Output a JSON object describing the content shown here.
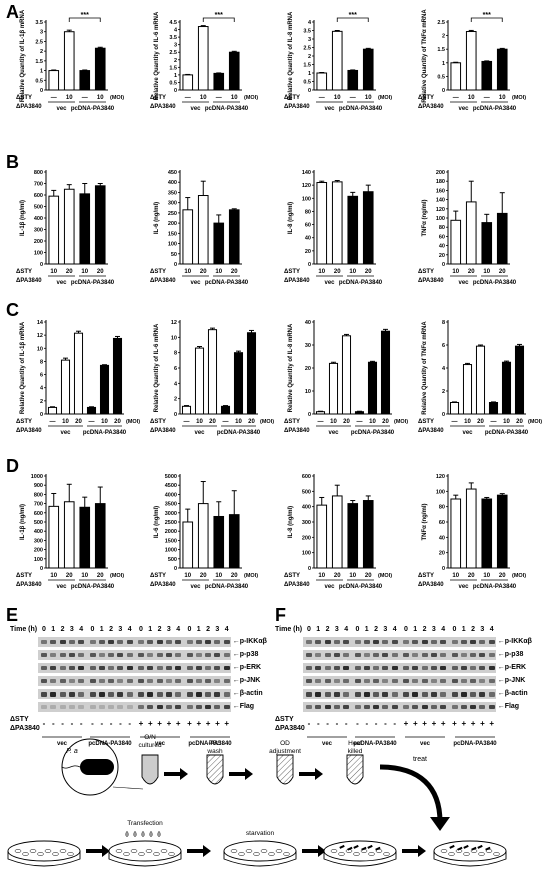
{
  "panel_letters": [
    "A",
    "B",
    "C",
    "D",
    "E",
    "F"
  ],
  "group_labels": {
    "sty": "ΔSTY",
    "pa": "ΔPA3840",
    "vec": "vec",
    "pc": "pcDNA-PA3840",
    "moi": "(MOI)",
    "dash": "—",
    "sig": "***"
  },
  "chart_data": [
    {
      "panel": "A",
      "type": "bar",
      "ylabel": "Relative Quantity of IL-1β mRNA",
      "ylim": [
        0,
        3.5
      ],
      "yticks": [
        0,
        0.5,
        1.0,
        1.5,
        2.0,
        2.5,
        3.0,
        3.5
      ],
      "categories": [
        "—",
        "10",
        "—",
        "10"
      ],
      "values": [
        1.0,
        3.0,
        1.0,
        2.15
      ],
      "errors": [
        0.03,
        0.08,
        0.03,
        0.05
      ],
      "fills": [
        "#fff",
        "#fff",
        "#000",
        "#000"
      ],
      "sig": "***"
    },
    {
      "panel": "A",
      "type": "bar",
      "ylabel": "Relative Quantity of IL-6 mRNA",
      "ylim": [
        0,
        4.5
      ],
      "yticks": [
        0,
        0.5,
        1.0,
        1.5,
        2.0,
        2.5,
        3.0,
        3.5,
        4.0,
        4.5
      ],
      "categories": [
        "—",
        "10",
        "—",
        "10"
      ],
      "values": [
        1.0,
        4.2,
        1.1,
        2.5
      ],
      "errors": [
        0.03,
        0.06,
        0.03,
        0.06
      ],
      "fills": [
        "#fff",
        "#fff",
        "#000",
        "#000"
      ],
      "sig": "***"
    },
    {
      "panel": "A",
      "type": "bar",
      "ylabel": "Relative Quantity of IL-8 mRNA",
      "ylim": [
        0,
        4.0
      ],
      "yticks": [
        0,
        0.5,
        1.0,
        1.5,
        2.0,
        2.5,
        3.0,
        3.5,
        4.0
      ],
      "categories": [
        "—",
        "10",
        "—",
        "10"
      ],
      "values": [
        1.0,
        3.45,
        1.15,
        2.4
      ],
      "errors": [
        0.03,
        0.05,
        0.03,
        0.05
      ],
      "fills": [
        "#fff",
        "#fff",
        "#000",
        "#000"
      ],
      "sig": "***"
    },
    {
      "panel": "A",
      "type": "bar",
      "ylabel": "Relative Quantity of TNFα mRNA",
      "ylim": [
        0,
        2.5
      ],
      "yticks": [
        0,
        0.5,
        1.0,
        1.5,
        2.0,
        2.5
      ],
      "categories": [
        "—",
        "10",
        "—",
        "10"
      ],
      "values": [
        1.0,
        2.15,
        1.05,
        1.5
      ],
      "errors": [
        0.02,
        0.04,
        0.02,
        0.03
      ],
      "fills": [
        "#fff",
        "#fff",
        "#000",
        "#000"
      ],
      "sig": "***"
    },
    {
      "panel": "B",
      "type": "bar",
      "ylabel": "IL-1β (ng/ml)",
      "ylim": [
        0,
        800
      ],
      "yticks": [
        0,
        100,
        200,
        300,
        400,
        500,
        600,
        700,
        800
      ],
      "categories": [
        "10",
        "20",
        "10",
        "20"
      ],
      "values": [
        590,
        650,
        610,
        680
      ],
      "errors": [
        50,
        40,
        90,
        20
      ],
      "fills": [
        "#fff",
        "#fff",
        "#000",
        "#000"
      ]
    },
    {
      "panel": "B",
      "type": "bar",
      "ylabel": "IL-6 (ng/ml)",
      "ylim": [
        0,
        450
      ],
      "yticks": [
        0,
        50,
        100,
        150,
        200,
        250,
        300,
        350,
        400,
        450
      ],
      "categories": [
        "10",
        "20",
        "10",
        "20"
      ],
      "values": [
        265,
        335,
        200,
        265
      ],
      "errors": [
        60,
        70,
        40,
        5
      ],
      "fills": [
        "#fff",
        "#fff",
        "#000",
        "#000"
      ]
    },
    {
      "panel": "B",
      "type": "bar",
      "ylabel": "IL-8 (ng/ml)",
      "ylim": [
        0,
        140
      ],
      "yticks": [
        0,
        20,
        40,
        60,
        80,
        100,
        120,
        140
      ],
      "categories": [
        "10",
        "20",
        "10",
        "20"
      ],
      "values": [
        124,
        125,
        103,
        110
      ],
      "errors": [
        2,
        2,
        6,
        10
      ],
      "fills": [
        "#fff",
        "#fff",
        "#000",
        "#000"
      ]
    },
    {
      "panel": "B",
      "type": "bar",
      "ylabel": "TNFα (ng/ml)",
      "ylim": [
        0,
        200
      ],
      "yticks": [
        0,
        20,
        40,
        60,
        80,
        100,
        120,
        140,
        160,
        180,
        200
      ],
      "categories": [
        "10",
        "20",
        "10",
        "20"
      ],
      "values": [
        95,
        135,
        90,
        110
      ],
      "errors": [
        20,
        45,
        18,
        45
      ],
      "fills": [
        "#fff",
        "#fff",
        "#000",
        "#000"
      ]
    },
    {
      "panel": "C",
      "type": "bar",
      "ylabel": "Relative Quantity of IL-1β mRNA",
      "ylim": [
        0,
        14
      ],
      "yticks": [
        0,
        2,
        4,
        6,
        8,
        10,
        12,
        14
      ],
      "categories": [
        "—",
        "10",
        "20",
        "—",
        "10",
        "20"
      ],
      "values": [
        1.0,
        8.2,
        12.3,
        1.0,
        7.4,
        11.5
      ],
      "errors": [
        0.1,
        0.3,
        0.3,
        0.1,
        0.1,
        0.3
      ],
      "fills": [
        "#fff",
        "#fff",
        "#fff",
        "#000",
        "#000",
        "#000"
      ]
    },
    {
      "panel": "C",
      "type": "bar",
      "ylabel": "Relative Quantity of IL-6 mRNA",
      "ylim": [
        0,
        12
      ],
      "yticks": [
        0,
        2,
        4,
        6,
        8,
        10,
        12
      ],
      "categories": [
        "—",
        "10",
        "20",
        "—",
        "10",
        "20"
      ],
      "values": [
        1.0,
        8.6,
        11.0,
        1.0,
        8.0,
        10.6
      ],
      "errors": [
        0.1,
        0.2,
        0.2,
        0.1,
        0.2,
        0.3
      ],
      "fills": [
        "#fff",
        "#fff",
        "#fff",
        "#000",
        "#000",
        "#000"
      ]
    },
    {
      "panel": "C",
      "type": "bar",
      "ylabel": "Relative Quantity of IL-8 mRNA",
      "ylim": [
        0,
        40
      ],
      "yticks": [
        0,
        10,
        20,
        30,
        40
      ],
      "categories": [
        "—",
        "10",
        "20",
        "—",
        "10",
        "20"
      ],
      "values": [
        1.0,
        22.0,
        34.0,
        1.0,
        22.5,
        36.0
      ],
      "errors": [
        0.2,
        0.5,
        0.6,
        0.2,
        0.4,
        0.8
      ],
      "fills": [
        "#fff",
        "#fff",
        "#fff",
        "#000",
        "#000",
        "#000"
      ]
    },
    {
      "panel": "C",
      "type": "bar",
      "ylabel": "Relative Quantity of TNFα mRNA",
      "ylim": [
        0,
        8
      ],
      "yticks": [
        0,
        2,
        4,
        6,
        8
      ],
      "categories": [
        "—",
        "10",
        "20",
        "—",
        "10",
        "20"
      ],
      "values": [
        1.0,
        4.3,
        5.9,
        1.0,
        4.5,
        5.9
      ],
      "errors": [
        0.05,
        0.1,
        0.1,
        0.05,
        0.1,
        0.15
      ],
      "fills": [
        "#fff",
        "#fff",
        "#fff",
        "#000",
        "#000",
        "#000"
      ]
    },
    {
      "panel": "D",
      "type": "bar",
      "ylabel": "IL-1β (ng/ml)",
      "ylim": [
        0,
        1000
      ],
      "yticks": [
        0,
        100,
        200,
        300,
        400,
        500,
        600,
        700,
        800,
        900,
        1000
      ],
      "categories": [
        "10",
        "20",
        "10",
        "20"
      ],
      "values": [
        670,
        720,
        660,
        700
      ],
      "errors": [
        140,
        190,
        110,
        180
      ],
      "fills": [
        "#fff",
        "#fff",
        "#000",
        "#000"
      ]
    },
    {
      "panel": "D",
      "type": "bar",
      "ylabel": "IL-6 (ng/ml)",
      "ylim": [
        0,
        5000
      ],
      "yticks": [
        0,
        500,
        1000,
        1500,
        2000,
        2500,
        3000,
        3500,
        4000,
        4500,
        5000
      ],
      "categories": [
        "10",
        "20",
        "10",
        "20"
      ],
      "values": [
        2500,
        3500,
        2800,
        2900
      ],
      "errors": [
        700,
        1200,
        800,
        1300
      ],
      "fills": [
        "#fff",
        "#fff",
        "#000",
        "#000"
      ]
    },
    {
      "panel": "D",
      "type": "bar",
      "ylabel": "IL-8 (ng/ml)",
      "ylim": [
        0,
        600
      ],
      "yticks": [
        0,
        100,
        200,
        300,
        400,
        500,
        600
      ],
      "categories": [
        "10",
        "20",
        "10",
        "20"
      ],
      "values": [
        410,
        470,
        420,
        440
      ],
      "errors": [
        50,
        70,
        20,
        30
      ],
      "fills": [
        "#fff",
        "#fff",
        "#000",
        "#000"
      ]
    },
    {
      "panel": "D",
      "type": "bar",
      "ylabel": "TNFα (ng/ml)",
      "ylim": [
        0,
        120
      ],
      "yticks": [
        0,
        20,
        40,
        60,
        80,
        100,
        120
      ],
      "categories": [
        "10",
        "20",
        "10",
        "20"
      ],
      "values": [
        90,
        103,
        90,
        95
      ],
      "errors": [
        5,
        8,
        2,
        2
      ],
      "fills": [
        "#fff",
        "#fff",
        "#000",
        "#000"
      ]
    }
  ],
  "blots": {
    "time_label": "Time (h)",
    "time_points": [
      "0",
      "1",
      "2",
      "3",
      "4",
      "0",
      "1",
      "2",
      "3",
      "4",
      "0",
      "1",
      "2",
      "3",
      "4",
      "0",
      "1",
      "2",
      "3",
      "4"
    ],
    "proteins": [
      "p-IKKαβ",
      "p-p38",
      "p-ERK",
      "p-JNK",
      "β-actin",
      "Flag"
    ],
    "E_sty": [
      "-",
      "-",
      "-",
      "-",
      "-",
      "-",
      "-",
      "-",
      "-",
      "-",
      "+",
      "+",
      "+",
      "+",
      "+",
      "+",
      "+",
      "+",
      "+",
      "+"
    ],
    "F_sty": [
      "-",
      "-",
      "-",
      "-",
      "-",
      "-",
      "-",
      "-",
      "-",
      "-",
      "+",
      "+",
      "+",
      "+",
      "+",
      "+",
      "+",
      "+",
      "+",
      "+"
    ],
    "E_pa": [
      "-",
      "-",
      "-",
      "-",
      "-",
      "-",
      "-",
      "-",
      "-",
      "-",
      "-",
      "-",
      "-",
      "-",
      "-",
      "-",
      "-",
      "-",
      "-",
      "-"
    ],
    "groups": [
      "vec",
      "pcDNA-PA3840",
      "vec",
      "pcDNA-PA3840"
    ]
  },
  "schematic": {
    "pa_label": "P. a",
    "steps": [
      "O/N cultured",
      "PBS wash",
      "OD adjustment",
      "Heat killed"
    ],
    "treat": "treat",
    "transfection": "Transfection",
    "starvation": "starvation"
  }
}
